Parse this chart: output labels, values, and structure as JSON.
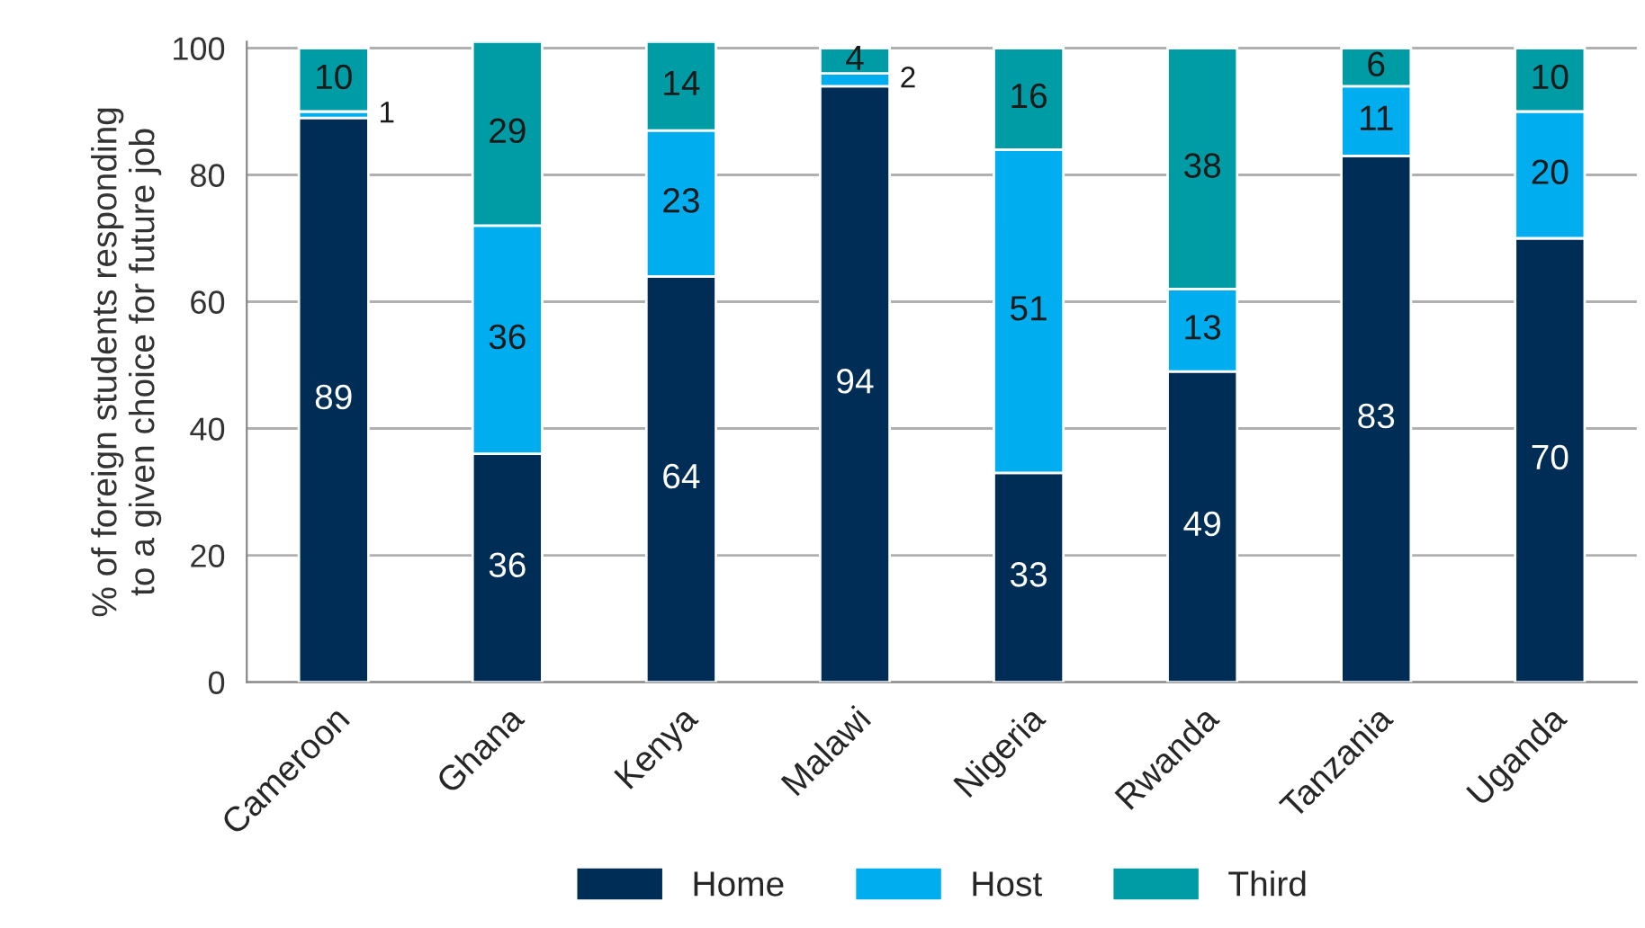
{
  "chart_data": {
    "type": "bar",
    "stacked": true,
    "ylabel": "% of foreign students responding\nto a given choice for future job",
    "categories": [
      "Cameroon",
      "Ghana",
      "Kenya",
      "Malawi",
      "Nigeria",
      "Rwanda",
      "Tanzania",
      "Uganda"
    ],
    "series": [
      {
        "name": "Home",
        "color": "#002d55",
        "values": [
          89,
          36,
          64,
          94,
          33,
          49,
          83,
          70
        ]
      },
      {
        "name": "Host",
        "color": "#00adef",
        "values": [
          1,
          36,
          23,
          2,
          51,
          13,
          11,
          20
        ]
      },
      {
        "name": "Third",
        "color": "#009ca6",
        "values": [
          10,
          29,
          14,
          4,
          16,
          38,
          6,
          10
        ]
      }
    ],
    "ylim": [
      0,
      101
    ],
    "yticks": [
      0,
      20,
      40,
      60,
      80,
      100
    ],
    "grid": "y",
    "legend": "bottom",
    "data_labels": true
  }
}
